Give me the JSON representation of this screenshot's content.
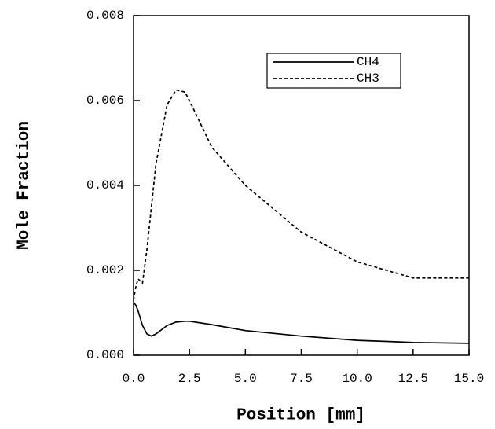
{
  "chart_data": {
    "type": "line",
    "xlabel": "Position [mm]",
    "ylabel": "Mole Fraction",
    "x": [
      0,
      0.1,
      0.2,
      0.4,
      0.6,
      0.8,
      1.0,
      1.5,
      1.9,
      2.3,
      2.5,
      3.5,
      5,
      7.5,
      10,
      12.5,
      15
    ],
    "series": [
      {
        "name": "CH4",
        "color": "#000000",
        "dash": "solid",
        "values": [
          0.00125,
          0.00118,
          0.00105,
          0.0007,
          0.0005,
          0.00045,
          0.0005,
          0.0007,
          0.00078,
          0.0008,
          0.0008,
          0.00072,
          0.00058,
          0.00045,
          0.00035,
          0.0003,
          0.00028
        ]
      },
      {
        "name": "CH3",
        "color": "#000000",
        "dash": "dashed",
        "values": [
          0.0013,
          0.0016,
          0.0018,
          0.0017,
          0.0025,
          0.0035,
          0.0045,
          0.0059,
          0.00625,
          0.0062,
          0.006,
          0.0049,
          0.004,
          0.0029,
          0.0022,
          0.00182,
          0.00182
        ]
      }
    ],
    "xlim": [
      0,
      15
    ],
    "xticks": [
      {
        "value": 0,
        "label": "0.0"
      },
      2.5,
      {
        "value": 5,
        "label": "5.0"
      },
      7.5,
      {
        "value": 10,
        "label": "10.0"
      },
      12.5,
      {
        "value": 15,
        "label": "15.0"
      }
    ],
    "ylim": [
      0,
      0.008
    ],
    "yticks": [
      {
        "value": 0,
        "label": "0.000"
      },
      {
        "value": 0.002,
        "label": "0.002"
      },
      {
        "value": 0.004,
        "label": "0.004"
      },
      {
        "value": 0.006,
        "label": "0.006"
      },
      {
        "value": 0.008,
        "label": "0.008"
      }
    ],
    "grid": false,
    "legend": "upper right"
  }
}
